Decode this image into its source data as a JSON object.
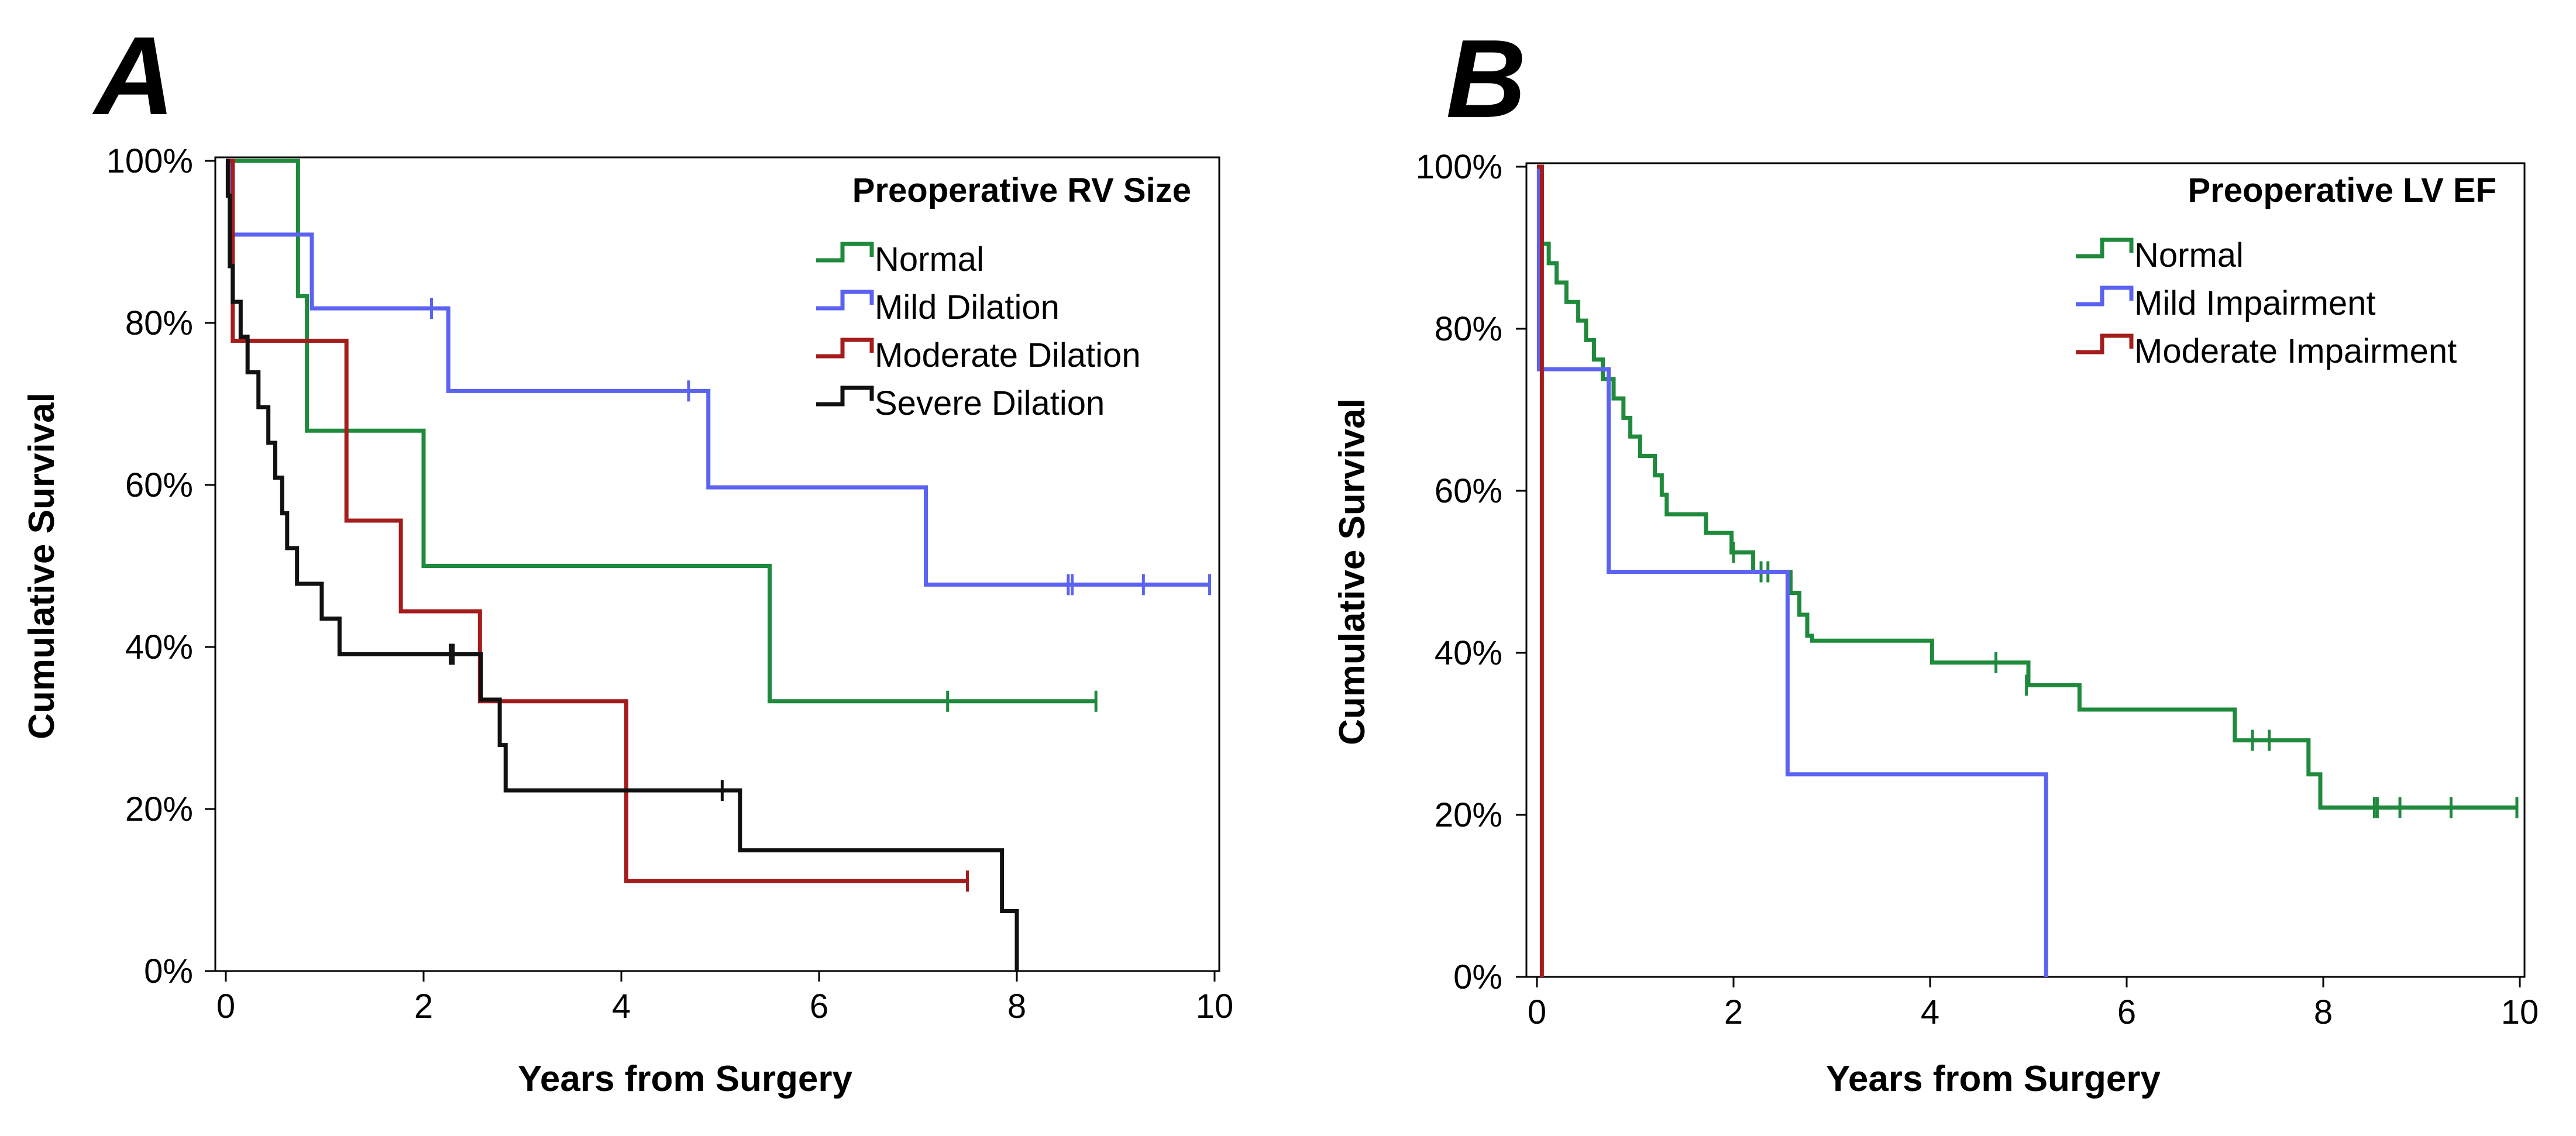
{
  "chart_data": [
    {
      "type": "line",
      "subtype": "kaplan-meier",
      "panel_label": "A",
      "title": "",
      "xlabel": "Years from Surgery",
      "ylabel": "Cumulative Survival",
      "xlim": [
        0,
        10
      ],
      "ylim": [
        0,
        100
      ],
      "xticks": [
        "0",
        "2",
        "4",
        "6",
        "8",
        "10"
      ],
      "yticks": [
        "0%",
        "20%",
        "40%",
        "60%",
        "80%",
        "100%"
      ],
      "legend_title": "Preoperative RV Size",
      "legend_position": "top-right",
      "series": [
        {
          "name": "Normal",
          "color": "#1f8a3c",
          "steps": [
            [
              0,
              100
            ],
            [
              0.73,
              83.3
            ],
            [
              0.82,
              66.7
            ],
            [
              2.0,
              50.0
            ],
            [
              5.5,
              33.3
            ],
            [
              8.8,
              33.3
            ]
          ],
          "censored": [
            [
              7.3,
              33.3
            ],
            [
              8.8,
              33.3
            ]
          ]
        },
        {
          "name": "Mild Dilation",
          "color": "#5b63f0",
          "steps": [
            [
              0,
              100
            ],
            [
              0.05,
              90.9
            ],
            [
              0.87,
              81.8
            ],
            [
              2.25,
              71.6
            ],
            [
              4.88,
              59.7
            ],
            [
              7.08,
              47.7
            ],
            [
              9.95,
              47.7
            ]
          ],
          "censored": [
            [
              2.08,
              81.8
            ],
            [
              4.68,
              71.6
            ],
            [
              8.52,
              47.7
            ],
            [
              8.56,
              47.7
            ],
            [
              9.28,
              47.7
            ],
            [
              9.95,
              47.7
            ]
          ]
        },
        {
          "name": "Moderate Dilation",
          "color": "#a51c1c",
          "steps": [
            [
              0,
              100
            ],
            [
              0.07,
              77.8
            ],
            [
              1.22,
              55.6
            ],
            [
              1.77,
              44.4
            ],
            [
              2.57,
              33.3
            ],
            [
              4.05,
              11.1
            ],
            [
              7.5,
              11.1
            ]
          ],
          "censored": [
            [
              7.5,
              11.1
            ]
          ]
        },
        {
          "name": "Severe Dilation",
          "color": "#111111",
          "steps": [
            [
              0,
              100
            ],
            [
              0.02,
              95.7
            ],
            [
              0.04,
              87.0
            ],
            [
              0.07,
              82.6
            ],
            [
              0.15,
              78.3
            ],
            [
              0.22,
              73.9
            ],
            [
              0.33,
              69.6
            ],
            [
              0.43,
              65.2
            ],
            [
              0.5,
              60.9
            ],
            [
              0.57,
              56.5
            ],
            [
              0.62,
              52.2
            ],
            [
              0.72,
              47.8
            ],
            [
              0.97,
              43.5
            ],
            [
              1.15,
              39.1
            ],
            [
              2.58,
              33.5
            ],
            [
              2.77,
              27.9
            ],
            [
              2.83,
              22.3
            ],
            [
              5.2,
              14.9
            ],
            [
              7.85,
              7.4
            ],
            [
              8.0,
              0
            ]
          ],
          "censored": [
            [
              2.27,
              39.1
            ],
            [
              2.3,
              39.1
            ],
            [
              5.02,
              22.3
            ]
          ]
        }
      ]
    },
    {
      "type": "line",
      "subtype": "kaplan-meier",
      "panel_label": "B",
      "title": "",
      "xlabel": "Years from Surgery",
      "ylabel": "Cumulative Survival",
      "xlim": [
        0,
        10
      ],
      "ylim": [
        0,
        100
      ],
      "xticks": [
        "0",
        "2",
        "4",
        "6",
        "8",
        "10"
      ],
      "yticks": [
        "0%",
        "20%",
        "40%",
        "60%",
        "80%",
        "100%"
      ],
      "legend_title": "Preoperative LV EF",
      "legend_position": "top-right",
      "series": [
        {
          "name": "Normal",
          "color": "#1f8a3c",
          "steps": [
            [
              0,
              100
            ],
            [
              0.05,
              90.5
            ],
            [
              0.12,
              88.1
            ],
            [
              0.2,
              85.7
            ],
            [
              0.3,
              83.3
            ],
            [
              0.42,
              81.0
            ],
            [
              0.5,
              78.6
            ],
            [
              0.58,
              76.2
            ],
            [
              0.67,
              73.8
            ],
            [
              0.78,
              71.4
            ],
            [
              0.88,
              69.0
            ],
            [
              0.95,
              66.7
            ],
            [
              1.05,
              64.3
            ],
            [
              1.2,
              61.9
            ],
            [
              1.27,
              59.5
            ],
            [
              1.32,
              57.1
            ],
            [
              1.72,
              54.8
            ],
            [
              1.98,
              52.4
            ],
            [
              2.2,
              50.0
            ],
            [
              2.58,
              47.4
            ],
            [
              2.67,
              44.7
            ],
            [
              2.75,
              42.1
            ],
            [
              2.8,
              41.5
            ],
            [
              4.02,
              38.8
            ],
            [
              5.0,
              36.0
            ],
            [
              5.52,
              33.0
            ],
            [
              7.1,
              29.2
            ],
            [
              7.85,
              25.0
            ],
            [
              7.97,
              20.9
            ],
            [
              9.97,
              20.9
            ]
          ],
          "censored": [
            [
              2.0,
              52.4
            ],
            [
              2.28,
              50.0
            ],
            [
              2.35,
              50.0
            ],
            [
              4.67,
              38.8
            ],
            [
              4.98,
              36.0
            ],
            [
              7.28,
              29.2
            ],
            [
              7.45,
              29.2
            ],
            [
              8.52,
              20.9
            ],
            [
              8.55,
              20.9
            ],
            [
              8.78,
              20.9
            ],
            [
              9.3,
              20.9
            ],
            [
              9.97,
              20.9
            ]
          ]
        },
        {
          "name": "Mild Impairment",
          "color": "#5b63f0",
          "steps": [
            [
              0,
              100
            ],
            [
              0.02,
              75.0
            ],
            [
              0.73,
              50.0
            ],
            [
              2.55,
              25.0
            ],
            [
              5.18,
              0
            ]
          ],
          "censored": []
        },
        {
          "name": "Moderate Impairment",
          "color": "#a51c1c",
          "steps": [
            [
              0,
              100
            ],
            [
              0.05,
              0
            ]
          ],
          "censored": []
        }
      ]
    }
  ]
}
